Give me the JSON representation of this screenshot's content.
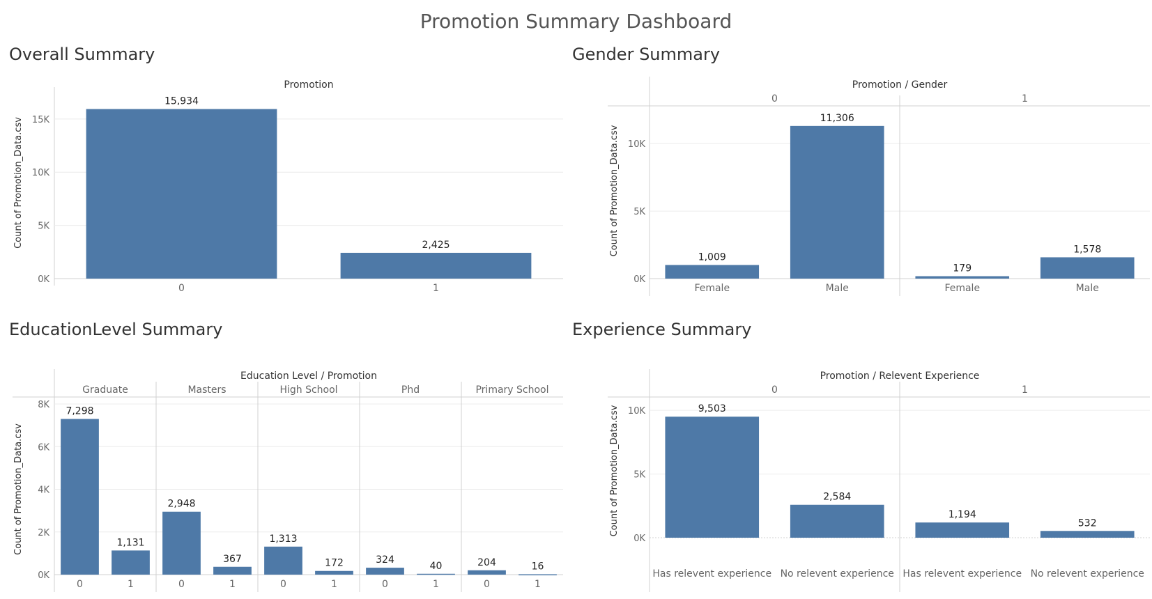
{
  "dashboard_title": "Promotion Summary Dashboard",
  "bar_color": "#4e79a7",
  "chart_data": [
    {
      "id": "overall",
      "type": "bar",
      "title": "Overall Summary",
      "header": "Promotion",
      "ylabel": "Count of Promotion_Data.csv",
      "yticks": [
        0,
        5000,
        10000,
        15000
      ],
      "ytick_labels": [
        "0K",
        "5K",
        "10K",
        "15K"
      ],
      "ylim": [
        0,
        18000
      ],
      "groups": [],
      "categories": [
        "0",
        "1"
      ],
      "values": [
        15934,
        2425
      ],
      "value_labels": [
        "15,934",
        "2,425"
      ]
    },
    {
      "id": "gender",
      "type": "bar",
      "title": "Gender Summary",
      "header": "Promotion / Gender",
      "ylabel": "Count of Promotion_Data.csv",
      "yticks": [
        0,
        5000,
        10000
      ],
      "ytick_labels": [
        "0K",
        "5K",
        "10K"
      ],
      "ylim": [
        0,
        13000
      ],
      "groups": [
        "0",
        "1"
      ],
      "categories": [
        "Female",
        "Male",
        "Female",
        "Male"
      ],
      "values": [
        1009,
        11306,
        179,
        1578
      ],
      "value_labels": [
        "1,009",
        "11,306",
        "179",
        "1,578"
      ]
    },
    {
      "id": "education",
      "type": "bar",
      "title": "EducationLevel Summary",
      "header": "Education Level / Promotion",
      "ylabel": "Count of Promotion_Data.csv",
      "yticks": [
        0,
        2000,
        4000,
        6000,
        8000
      ],
      "ytick_labels": [
        "0K",
        "2K",
        "4K",
        "6K",
        "8K"
      ],
      "ylim": [
        0,
        8000
      ],
      "groups": [
        "Graduate",
        "Masters",
        "High School",
        "Phd",
        "Primary School"
      ],
      "categories": [
        "0",
        "1",
        "0",
        "1",
        "0",
        "1",
        "0",
        "1",
        "0",
        "1"
      ],
      "values": [
        7298,
        1131,
        2948,
        367,
        1313,
        172,
        324,
        40,
        204,
        16
      ],
      "value_labels": [
        "7,298",
        "1,131",
        "2,948",
        "367",
        "1,313",
        "172",
        "324",
        "40",
        "204",
        "16"
      ]
    },
    {
      "id": "experience",
      "type": "bar",
      "title": "Experience Summary",
      "header": "Promotion / Relevent Experience",
      "ylabel": "Count of Promotion_Data.csv",
      "yticks": [
        0,
        5000,
        10000
      ],
      "ytick_labels": [
        "0K",
        "5K",
        "10K"
      ],
      "ylim": [
        0,
        10500
      ],
      "groups": [
        "0",
        "1"
      ],
      "categories": [
        "Has relevent experience",
        "No relevent experience",
        "Has relevent experience",
        "No relevent experience"
      ],
      "values": [
        9503,
        2584,
        1194,
        532
      ],
      "value_labels": [
        "9,503",
        "2,584",
        "1,194",
        "532"
      ]
    }
  ]
}
